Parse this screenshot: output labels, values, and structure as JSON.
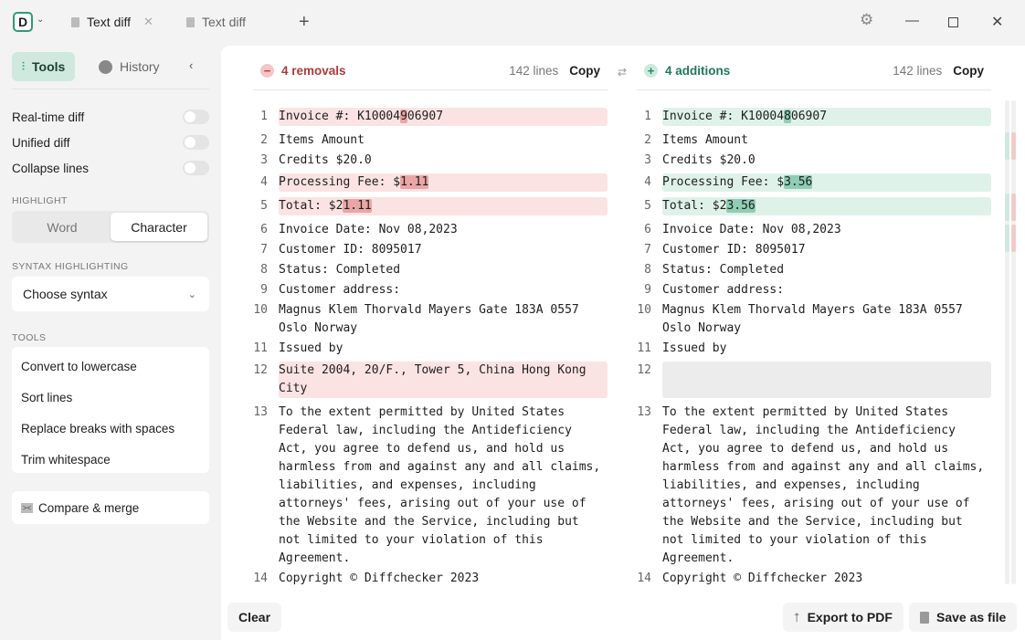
{
  "titlebar": {
    "logo": "D",
    "tabs": [
      {
        "label": "Text diff",
        "active": true
      },
      {
        "label": "Text diff",
        "active": false
      }
    ],
    "new_tab": "+"
  },
  "sidebar": {
    "tabs": [
      {
        "label": "Tools",
        "icon": "sliders-icon"
      },
      {
        "label": "History",
        "icon": "history-icon"
      }
    ],
    "toggles": [
      {
        "label": "Real-time diff",
        "on": false
      },
      {
        "label": "Unified diff",
        "on": false
      },
      {
        "label": "Collapse lines",
        "on": false
      }
    ],
    "highlight": {
      "heading": "HIGHLIGHT",
      "options": [
        "Word",
        "Character"
      ],
      "selected": "Character"
    },
    "syntax": {
      "heading": "SYNTAX HIGHLIGHTING",
      "value": "Choose syntax"
    },
    "tools": {
      "heading": "TOOLS",
      "items": [
        "Convert to lowercase",
        "Sort lines",
        "Replace breaks with spaces",
        "Trim whitespace"
      ]
    },
    "compare_merge": "Compare & merge"
  },
  "left": {
    "summary": "4 removals",
    "lines_count": "142 lines",
    "copy": "Copy",
    "color": "#c0392b",
    "rows": [
      {
        "n": "1",
        "chg": true,
        "seg": [
          [
            "Invoice #: K10004",
            0
          ],
          [
            "9",
            1
          ],
          [
            "06907",
            0
          ]
        ]
      },
      {
        "n": "2",
        "seg": [
          [
            "Items Amount",
            0
          ]
        ]
      },
      {
        "n": "3",
        "seg": [
          [
            "Credits $20.0",
            0
          ]
        ]
      },
      {
        "n": "4",
        "chg": true,
        "seg": [
          [
            "Processing Fee: $",
            0
          ],
          [
            "1.11",
            1
          ]
        ]
      },
      {
        "n": "5",
        "chg": true,
        "seg": [
          [
            "Total: $2",
            0
          ],
          [
            "1.11",
            1
          ]
        ]
      },
      {
        "n": "6",
        "seg": [
          [
            "Invoice Date: Nov 08,2023",
            0
          ]
        ]
      },
      {
        "n": "7",
        "seg": [
          [
            "Customer ID: 8095017",
            0
          ]
        ]
      },
      {
        "n": "8",
        "seg": [
          [
            "Status: Completed",
            0
          ]
        ]
      },
      {
        "n": "9",
        "seg": [
          [
            "Customer address:",
            0
          ]
        ]
      },
      {
        "n": "10",
        "seg": [
          [
            "Magnus Klem Thorvald Mayers Gate 183A 0557 Oslo Norway",
            0
          ]
        ]
      },
      {
        "n": "11",
        "seg": [
          [
            "Issued by",
            0
          ]
        ]
      },
      {
        "n": "12",
        "chg": true,
        "seg": [
          [
            "Suite 2004, 20/F., Tower 5, China Hong Kong City",
            0
          ]
        ]
      },
      {
        "n": "13",
        "seg": [
          [
            "To the extent permitted by United States Federal law, including the Antideficiency Act, you agree to defend us, and hold us harmless from and against any and all claims, liabilities, and expenses, including attorneys' fees, arising out of your use of the Website and the Service, including but not limited to your violation of this Agreement.",
            0
          ]
        ]
      },
      {
        "n": "14",
        "seg": [
          [
            "Copyright © Diffchecker 2023",
            0
          ]
        ]
      }
    ]
  },
  "right": {
    "summary": "4 additions",
    "lines_count": "142 lines",
    "copy": "Copy",
    "color": "#1e8a64",
    "rows": [
      {
        "n": "1",
        "chg": true,
        "seg": [
          [
            "Invoice #: K10004",
            0
          ],
          [
            "8",
            1
          ],
          [
            "06907",
            0
          ]
        ]
      },
      {
        "n": "2",
        "seg": [
          [
            "Items Amount",
            0
          ]
        ]
      },
      {
        "n": "3",
        "seg": [
          [
            "Credits $20.0",
            0
          ]
        ]
      },
      {
        "n": "4",
        "chg": true,
        "seg": [
          [
            "Processing Fee: $",
            0
          ],
          [
            "3.56",
            1
          ]
        ]
      },
      {
        "n": "5",
        "chg": true,
        "seg": [
          [
            "Total: $2",
            0
          ],
          [
            "3.56",
            1
          ]
        ]
      },
      {
        "n": "6",
        "seg": [
          [
            "Invoice Date: Nov 08,2023",
            0
          ]
        ]
      },
      {
        "n": "7",
        "seg": [
          [
            "Customer ID: 8095017",
            0
          ]
        ]
      },
      {
        "n": "8",
        "seg": [
          [
            "Status: Completed",
            0
          ]
        ]
      },
      {
        "n": "9",
        "seg": [
          [
            "Customer address:",
            0
          ]
        ]
      },
      {
        "n": "10",
        "seg": [
          [
            "Magnus Klem Thorvald Mayers Gate 183A 0557 Oslo Norway",
            0
          ]
        ]
      },
      {
        "n": "11",
        "seg": [
          [
            "Issued by",
            0
          ]
        ]
      },
      {
        "n": "12",
        "empty": true,
        "seg": []
      },
      {
        "n": "13",
        "seg": [
          [
            "To the extent permitted by United States Federal law, including the Antideficiency Act, you agree to defend us, and hold us harmless from and against any and all claims, liabilities, and expenses, including attorneys' fees, arising out of your use of the Website and the Service, including but not limited to your violation of this Agreement.",
            0
          ]
        ]
      },
      {
        "n": "14",
        "seg": [
          [
            "Copyright © Diffchecker 2023",
            0
          ]
        ]
      }
    ]
  },
  "footer": {
    "clear": "Clear",
    "export": "Export to PDF",
    "save": "Save as file"
  }
}
